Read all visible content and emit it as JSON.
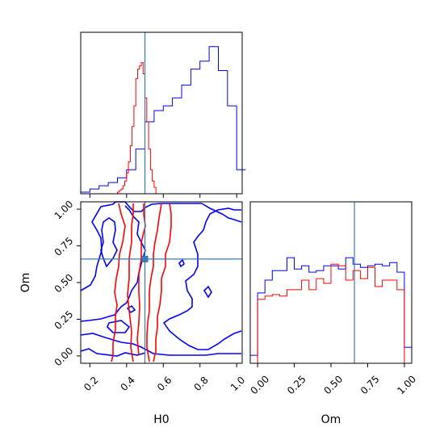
{
  "chart_data": {
    "type": "corner",
    "parameters": [
      "H0",
      "Om"
    ],
    "truth": {
      "H0": 0.5,
      "Om": 0.66
    },
    "truth_color": "#3a79b3",
    "series": [
      {
        "color": "#0000ff"
      },
      {
        "color": "#ff0000"
      }
    ],
    "panels": {
      "h0_hist": {
        "xlim": [
          0.15,
          1.03
        ],
        "bins": [
          0.15,
          0.2,
          0.25,
          0.3,
          0.35,
          0.4,
          0.45,
          0.5,
          0.55,
          0.6,
          0.65,
          0.7,
          0.75,
          0.8,
          0.85,
          0.9,
          0.95,
          1.0,
          1.05
        ],
        "blue": [
          0.01,
          0.03,
          0.05,
          0.07,
          0.1,
          0.15,
          0.28,
          0.45,
          0.52,
          0.55,
          0.6,
          0.68,
          0.78,
          0.83,
          0.92,
          0.77,
          0.55,
          0.15
        ],
        "red_bins": [
          0.35,
          0.36,
          0.37,
          0.38,
          0.39,
          0.4,
          0.41,
          0.42,
          0.43,
          0.44,
          0.45,
          0.46,
          0.47,
          0.48,
          0.49,
          0.5,
          0.51,
          0.52,
          0.53,
          0.54,
          0.55,
          0.56,
          0.57
        ],
        "red": [
          0.01,
          0.02,
          0.03,
          0.05,
          0.08,
          0.13,
          0.2,
          0.3,
          0.42,
          0.55,
          0.72,
          0.78,
          0.8,
          0.82,
          0.75,
          0.6,
          0.45,
          0.28,
          0.15,
          0.08,
          0.04,
          0.0
        ]
      },
      "om_hist": {
        "xlim": [
          -0.05,
          1.05
        ],
        "bins": [
          -0.05,
          0.0,
          0.05,
          0.1,
          0.15,
          0.2,
          0.25,
          0.3,
          0.35,
          0.4,
          0.45,
          0.5,
          0.55,
          0.6,
          0.65,
          0.7,
          0.75,
          0.8,
          0.85,
          0.9,
          0.95,
          1.0,
          1.05
        ],
        "blue": [
          0.05,
          0.44,
          0.52,
          0.58,
          0.58,
          0.66,
          0.59,
          0.61,
          0.57,
          0.58,
          0.61,
          0.61,
          0.59,
          0.66,
          0.62,
          0.6,
          0.61,
          0.62,
          0.61,
          0.63,
          0.57,
          0.1
        ],
        "red": [
          0.0,
          0.4,
          0.42,
          0.43,
          0.42,
          0.46,
          0.46,
          0.52,
          0.46,
          0.53,
          0.5,
          0.62,
          0.61,
          0.52,
          0.58,
          0.53,
          0.6,
          0.48,
          0.52,
          0.52,
          0.46,
          0.0
        ]
      },
      "joint": {
        "xlim": [
          0.15,
          1.03
        ],
        "ylim": [
          -0.05,
          1.05
        ],
        "truth_marker": {
          "H0": 0.5,
          "Om": 0.66
        }
      }
    },
    "ticks": {
      "h0": [
        {
          "v": 0.2,
          "label": "0.2"
        },
        {
          "v": 0.4,
          "label": "0.4"
        },
        {
          "v": 0.6,
          "label": "0.6"
        },
        {
          "v": 0.8,
          "label": "0.8"
        },
        {
          "v": 1.0,
          "label": "1.0"
        }
      ],
      "om": [
        {
          "v": 0.0,
          "label": "0.00"
        },
        {
          "v": 0.25,
          "label": "0.25"
        },
        {
          "v": 0.5,
          "label": "0.50"
        },
        {
          "v": 0.75,
          "label": "0.75"
        },
        {
          "v": 1.0,
          "label": "1.00"
        }
      ]
    },
    "xlabel_joint": "H0",
    "ylabel_joint": "Om",
    "xlabel_om": "Om"
  }
}
